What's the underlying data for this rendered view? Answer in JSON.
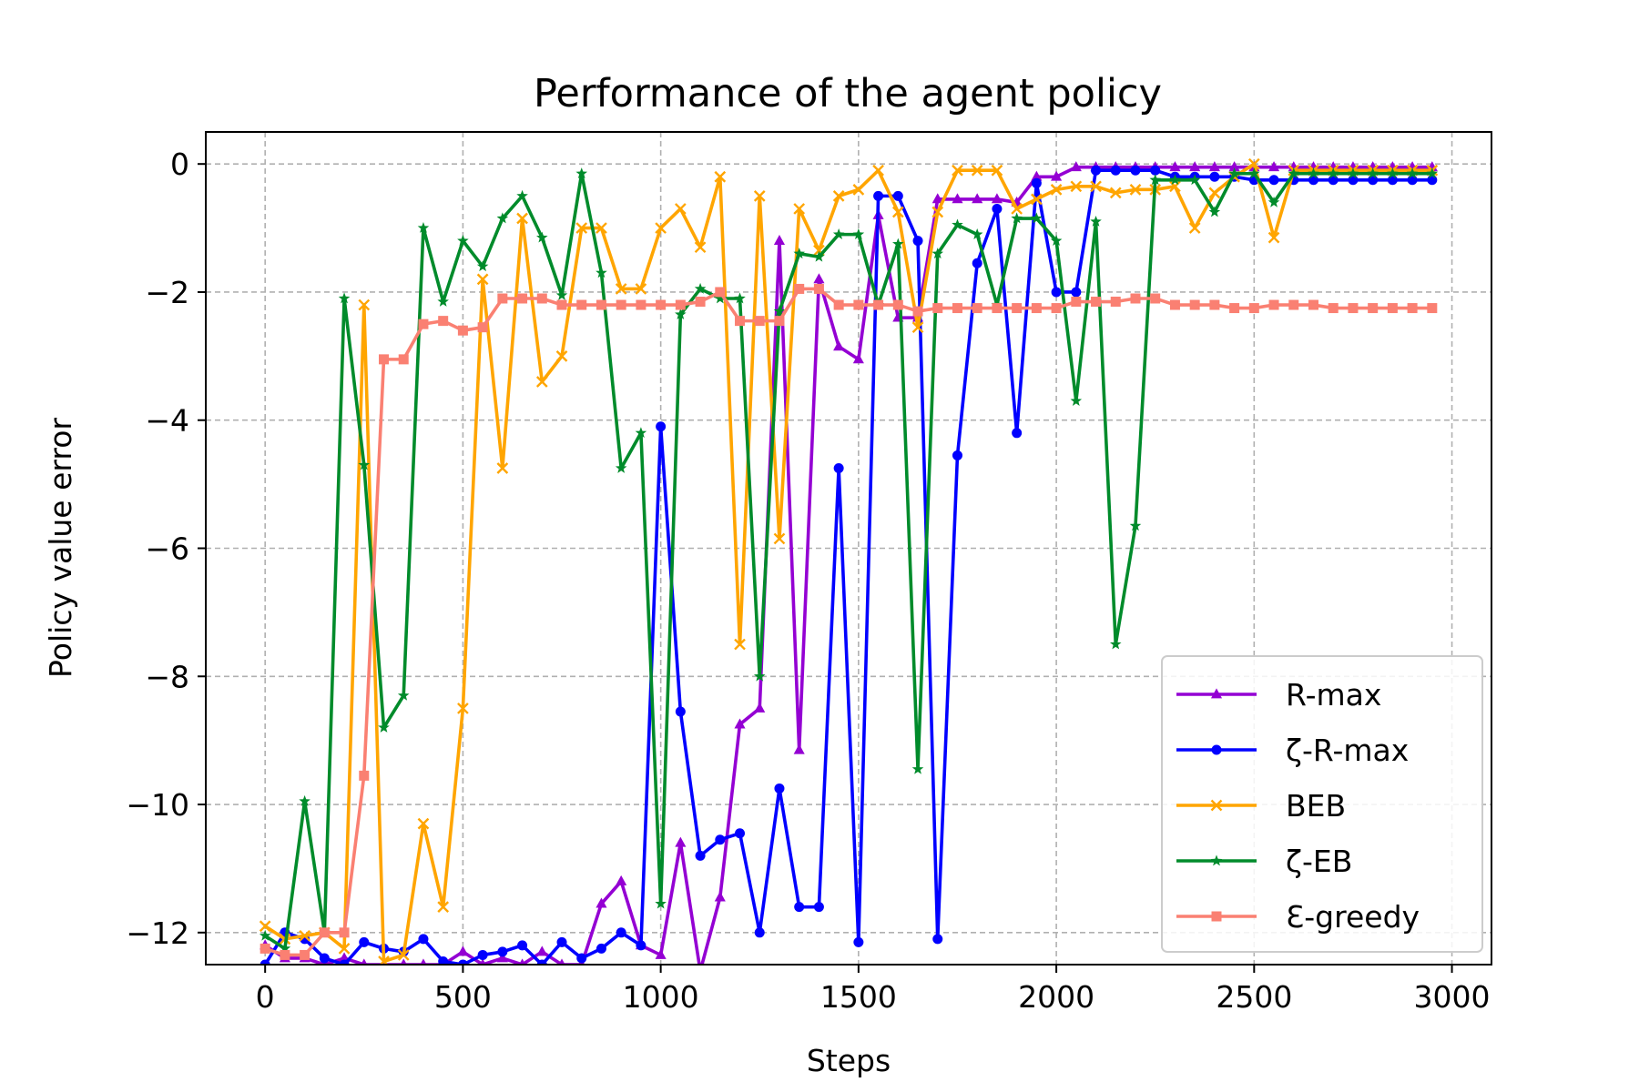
{
  "chart_data": {
    "type": "line",
    "title": "Performance of the agent policy",
    "xlabel": "Steps",
    "ylabel": "Policy value error",
    "xlim": [
      -150,
      3100
    ],
    "ylim": [
      -12.5,
      0.5
    ],
    "xticks": [
      0,
      500,
      1000,
      1500,
      2000,
      2500,
      3000
    ],
    "yticks": [
      0,
      -2,
      -4,
      -6,
      -8,
      -10,
      -12
    ],
    "xtick_labels": [
      "0",
      "500",
      "1000",
      "1500",
      "2000",
      "2500",
      "3000"
    ],
    "ytick_labels": [
      "0",
      "−2",
      "−4",
      "−6",
      "−8",
      "−10",
      "−12"
    ],
    "grid": true,
    "legend_position": "lower-right",
    "x": [
      0,
      50,
      100,
      150,
      200,
      250,
      300,
      350,
      400,
      450,
      500,
      550,
      600,
      650,
      700,
      750,
      800,
      850,
      900,
      950,
      1000,
      1050,
      1100,
      1150,
      1200,
      1250,
      1300,
      1350,
      1400,
      1450,
      1500,
      1550,
      1600,
      1650,
      1700,
      1750,
      1800,
      1850,
      1900,
      1950,
      2000,
      2050,
      2100,
      2150,
      2200,
      2250,
      2300,
      2350,
      2400,
      2450,
      2500,
      2550,
      2600,
      2650,
      2700,
      2750,
      2800,
      2850,
      2900,
      2950
    ],
    "series": [
      {
        "name": "R-max",
        "color": "#9400d3",
        "marker": "triangle",
        "values": [
          -12.2,
          -12.4,
          -12.4,
          -12.5,
          -12.4,
          -12.5,
          -12.5,
          -12.5,
          -12.5,
          -12.5,
          -12.3,
          -12.5,
          -12.4,
          -12.5,
          -12.3,
          -12.5,
          -12.5,
          -11.55,
          -11.2,
          -12.2,
          -12.35,
          -10.6,
          -12.6,
          -11.45,
          -8.75,
          -8.5,
          -1.2,
          -9.15,
          -1.8,
          -2.85,
          -3.05,
          -0.8,
          -2.4,
          -2.4,
          -0.55,
          -0.55,
          -0.55,
          -0.55,
          -0.6,
          -0.2,
          -0.2,
          -0.05,
          -0.05,
          -0.05,
          -0.05,
          -0.05,
          -0.05,
          -0.05,
          -0.05,
          -0.05,
          -0.05,
          -0.05,
          -0.05,
          -0.05,
          -0.05,
          -0.05,
          -0.05,
          -0.05,
          -0.05,
          -0.05
        ]
      },
      {
        "name": "ζ-R-max",
        "color": "#0000ff",
        "marker": "circle",
        "values": [
          -12.5,
          -12.0,
          -12.1,
          -12.4,
          -12.5,
          -12.15,
          -12.25,
          -12.3,
          -12.1,
          -12.45,
          -12.5,
          -12.35,
          -12.3,
          -12.2,
          -12.5,
          -12.15,
          -12.4,
          -12.25,
          -12.0,
          -12.2,
          -4.1,
          -8.55,
          -10.8,
          -10.55,
          -10.45,
          -12.0,
          -9.75,
          -11.6,
          -11.6,
          -4.75,
          -12.15,
          -0.5,
          -0.5,
          -1.2,
          -12.1,
          -4.55,
          -1.55,
          -0.7,
          -4.2,
          -0.3,
          -2.0,
          -2.0,
          -0.1,
          -0.1,
          -0.1,
          -0.1,
          -0.2,
          -0.2,
          -0.2,
          -0.2,
          -0.25,
          -0.25,
          -0.25,
          -0.25,
          -0.25,
          -0.25,
          -0.25,
          -0.25,
          -0.25,
          -0.25
        ]
      },
      {
        "name": "BEB",
        "color": "#ffa500",
        "marker": "x",
        "values": [
          -11.9,
          -12.1,
          -12.05,
          -12.0,
          -12.25,
          -2.2,
          -12.45,
          -12.35,
          -10.3,
          -11.6,
          -8.5,
          -1.8,
          -4.75,
          -0.85,
          -3.4,
          -3.0,
          -1.0,
          -1.0,
          -1.95,
          -1.95,
          -1.0,
          -0.7,
          -1.3,
          -0.2,
          -7.5,
          -0.5,
          -5.85,
          -0.7,
          -1.35,
          -0.5,
          -0.4,
          -0.1,
          -0.75,
          -2.55,
          -0.75,
          -0.1,
          -0.1,
          -0.1,
          -0.7,
          -0.55,
          -0.4,
          -0.35,
          -0.35,
          -0.45,
          -0.4,
          -0.4,
          -0.35,
          -1.0,
          -0.45,
          -0.2,
          0.0,
          -1.15,
          -0.1,
          -0.1,
          -0.1,
          -0.1,
          -0.1,
          -0.1,
          -0.1,
          -0.1
        ]
      },
      {
        "name": "ζ-EB",
        "color": "#008b2b",
        "marker": "star",
        "values": [
          -12.05,
          -12.25,
          -9.95,
          -12.0,
          -2.1,
          -4.7,
          -8.8,
          -8.3,
          -1.0,
          -2.15,
          -1.2,
          -1.6,
          -0.85,
          -0.5,
          -1.15,
          -2.05,
          -0.15,
          -1.7,
          -4.75,
          -4.2,
          -11.55,
          -2.35,
          -1.95,
          -2.1,
          -2.1,
          -8.0,
          -2.3,
          -1.4,
          -1.45,
          -1.1,
          -1.1,
          -2.2,
          -1.25,
          -9.45,
          -1.4,
          -0.95,
          -1.1,
          -2.2,
          -0.85,
          -0.85,
          -1.2,
          -3.7,
          -0.9,
          -7.5,
          -5.65,
          -0.25,
          -0.25,
          -0.25,
          -0.75,
          -0.15,
          -0.15,
          -0.6,
          -0.15,
          -0.15,
          -0.15,
          -0.15,
          -0.15,
          -0.15,
          -0.15,
          -0.15
        ]
      },
      {
        "name": "Ɛ-greedy",
        "color": "#fa8072",
        "marker": "square",
        "values": [
          -12.25,
          -12.35,
          -12.35,
          -12.0,
          -12.0,
          -9.55,
          -3.05,
          -3.05,
          -2.5,
          -2.45,
          -2.6,
          -2.55,
          -2.1,
          -2.1,
          -2.1,
          -2.2,
          -2.2,
          -2.2,
          -2.2,
          -2.2,
          -2.2,
          -2.2,
          -2.15,
          -2.0,
          -2.45,
          -2.45,
          -2.45,
          -1.95,
          -1.95,
          -2.2,
          -2.2,
          -2.2,
          -2.2,
          -2.3,
          -2.25,
          -2.25,
          -2.25,
          -2.25,
          -2.25,
          -2.25,
          -2.25,
          -2.15,
          -2.15,
          -2.15,
          -2.1,
          -2.1,
          -2.2,
          -2.2,
          -2.2,
          -2.25,
          -2.25,
          -2.2,
          -2.2,
          -2.2,
          -2.25,
          -2.25,
          -2.25,
          -2.25,
          -2.25,
          -2.25
        ]
      }
    ]
  }
}
